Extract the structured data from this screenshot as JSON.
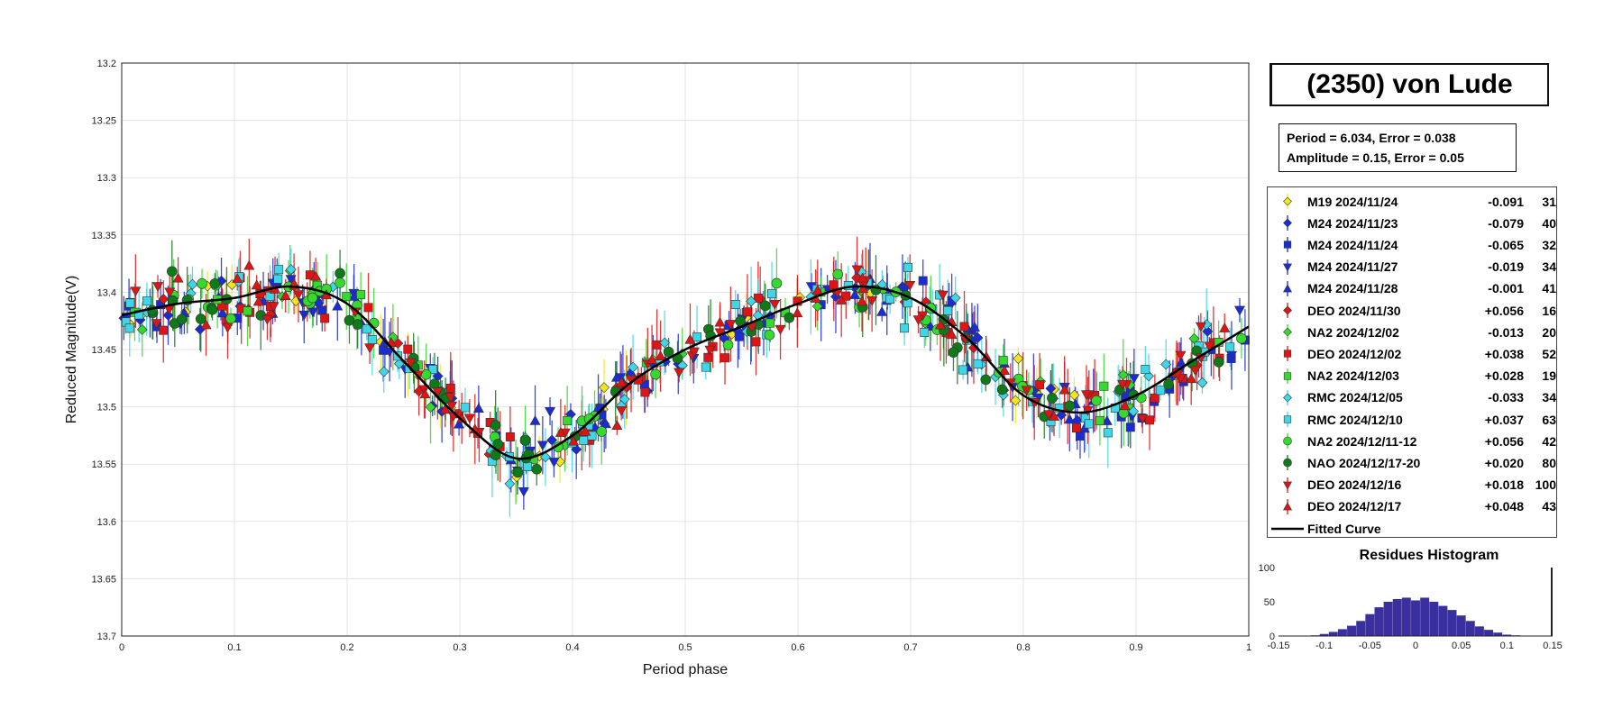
{
  "chart_data": {
    "type": "scatter",
    "title": "(2350) von Lude",
    "xlabel": "Period phase",
    "ylabel": "Reduced Magnitude(V)",
    "xlim": [
      0,
      1
    ],
    "ylim": [
      13.2,
      13.7
    ],
    "y_inverted": true,
    "grid": true,
    "legend_position": "right",
    "x_ticks": [
      "0",
      "0.1",
      "0.2",
      "0.3",
      "0.4",
      "0.5",
      "0.6",
      "0.7",
      "0.8",
      "0.9",
      "1"
    ],
    "y_ticks": [
      "13.2",
      "13.25",
      "13.3",
      "13.35",
      "13.4",
      "13.45",
      "13.5",
      "13.55",
      "13.6",
      "13.65",
      "13.7"
    ],
    "info": {
      "period_line": "Period =  6.034, Error = 0.038",
      "amplitude_line": "Amplitude = 0.15, Error = 0.05"
    },
    "fitted_curve": {
      "name": "Fitted Curve",
      "x": [
        0,
        0.05,
        0.1,
        0.15,
        0.2,
        0.25,
        0.3,
        0.35,
        0.4,
        0.45,
        0.5,
        0.55,
        0.6,
        0.65,
        0.7,
        0.75,
        0.8,
        0.85,
        0.9,
        0.95,
        1
      ],
      "y": [
        13.42,
        13.41,
        13.405,
        13.395,
        13.41,
        13.46,
        13.51,
        13.545,
        13.525,
        13.48,
        13.45,
        13.43,
        13.41,
        13.395,
        13.405,
        13.44,
        13.49,
        13.505,
        13.49,
        13.46,
        13.43
      ]
    },
    "series": [
      {
        "name": "M19 2024/11/24",
        "offset": "-0.091",
        "n": "31",
        "color": "#f5e61c",
        "marker": "diamond"
      },
      {
        "name": "M24 2024/11/23",
        "offset": "-0.079",
        "n": "40",
        "color": "#1a2bd9",
        "marker": "diamond"
      },
      {
        "name": "M24 2024/11/24",
        "offset": "-0.065",
        "n": "32",
        "color": "#1a2bd9",
        "marker": "square"
      },
      {
        "name": "M24 2024/11/27",
        "offset": "-0.019",
        "n": "34",
        "color": "#1a2bd9",
        "marker": "triangle-down"
      },
      {
        "name": "M24 2024/11/28",
        "offset": "-0.001",
        "n": "41",
        "color": "#1a2bd9",
        "marker": "triangle-up"
      },
      {
        "name": "DEO 2024/11/30",
        "offset": "+0.056",
        "n": "16",
        "color": "#e01414",
        "marker": "diamond"
      },
      {
        "name": "NA2 2024/12/02",
        "offset": "-0.013",
        "n": "20",
        "color": "#36d92e",
        "marker": "diamond"
      },
      {
        "name": "DEO 2024/12/02",
        "offset": "+0.038",
        "n": "52",
        "color": "#e01414",
        "marker": "square"
      },
      {
        "name": "NA2 2024/12/03",
        "offset": "+0.028",
        "n": "19",
        "color": "#36d92e",
        "marker": "square"
      },
      {
        "name": "RMC 2024/12/05",
        "offset": "-0.033",
        "n": "34",
        "color": "#3fd6e8",
        "marker": "diamond"
      },
      {
        "name": "RMC 2024/12/10",
        "offset": "+0.037",
        "n": "63",
        "color": "#3fd6e8",
        "marker": "square"
      },
      {
        "name": "NA2 2024/12/11-12",
        "offset": "+0.056",
        "n": "42",
        "color": "#36d92e",
        "marker": "circle"
      },
      {
        "name": "NAO 2024/12/17-20",
        "offset": "+0.020",
        "n": "80",
        "color": "#0f7a1a",
        "marker": "circle"
      },
      {
        "name": "DEO 2024/12/16",
        "offset": "+0.018",
        "n": "100",
        "color": "#e01414",
        "marker": "triangle-down"
      },
      {
        "name": "DEO 2024/12/17",
        "offset": "+0.048",
        "n": "43",
        "color": "#e01414",
        "marker": "triangle-up"
      }
    ],
    "residues_histogram": {
      "title": "Residues Histogram",
      "x_ticks": [
        "-0.15",
        "-0.1",
        "-0.05",
        "0",
        "0.05",
        "0.1",
        "0.15"
      ],
      "y_ticks": [
        "0",
        "50",
        "100"
      ],
      "xlim": [
        -0.15,
        0.15
      ],
      "ylim": [
        0,
        100
      ],
      "bin_centers": [
        -0.11,
        -0.1,
        -0.09,
        -0.08,
        -0.07,
        -0.06,
        -0.05,
        -0.04,
        -0.03,
        -0.02,
        -0.01,
        0,
        0.01,
        0.02,
        0.03,
        0.04,
        0.05,
        0.06,
        0.07,
        0.08,
        0.09,
        0.1,
        0.11
      ],
      "counts": [
        1,
        3,
        6,
        10,
        15,
        22,
        32,
        42,
        50,
        54,
        56,
        52,
        56,
        50,
        44,
        38,
        30,
        22,
        14,
        9,
        5,
        2,
        1
      ]
    }
  }
}
